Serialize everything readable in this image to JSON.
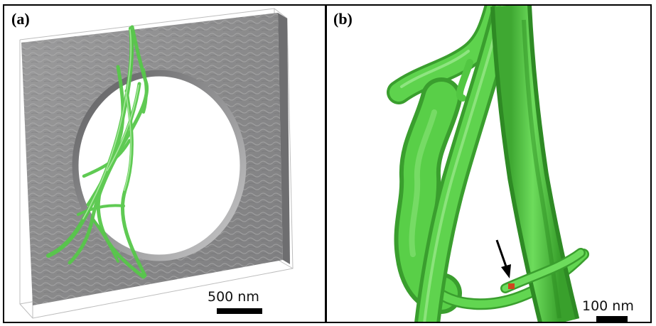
{
  "panels": [
    {
      "label": "(a)",
      "scalebar": "500 nm",
      "colors": {
        "membrane": "#8f8f90",
        "fiber": "#57c84a",
        "frame": "#b9b9b9"
      }
    },
    {
      "label": "(b)",
      "scalebar": "100 nm",
      "colors": {
        "fiber": "#4fc63f",
        "marker": "#d0461e",
        "arrow": "#000000"
      }
    }
  ]
}
